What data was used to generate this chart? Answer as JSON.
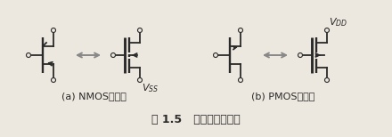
{
  "title": "图 1.5   两种符号的互换",
  "subtitle_a": "(a) NMOS晶体管",
  "subtitle_b": "(b) PMOS晶体管",
  "label_vss": "$V_{SS}$",
  "label_vdd": "$V_{DD}$",
  "bg_color": "#ede8df",
  "line_color": "#2a2a2a",
  "arrow_color": "#888888",
  "title_fontsize": 9,
  "sub_fontsize": 8
}
